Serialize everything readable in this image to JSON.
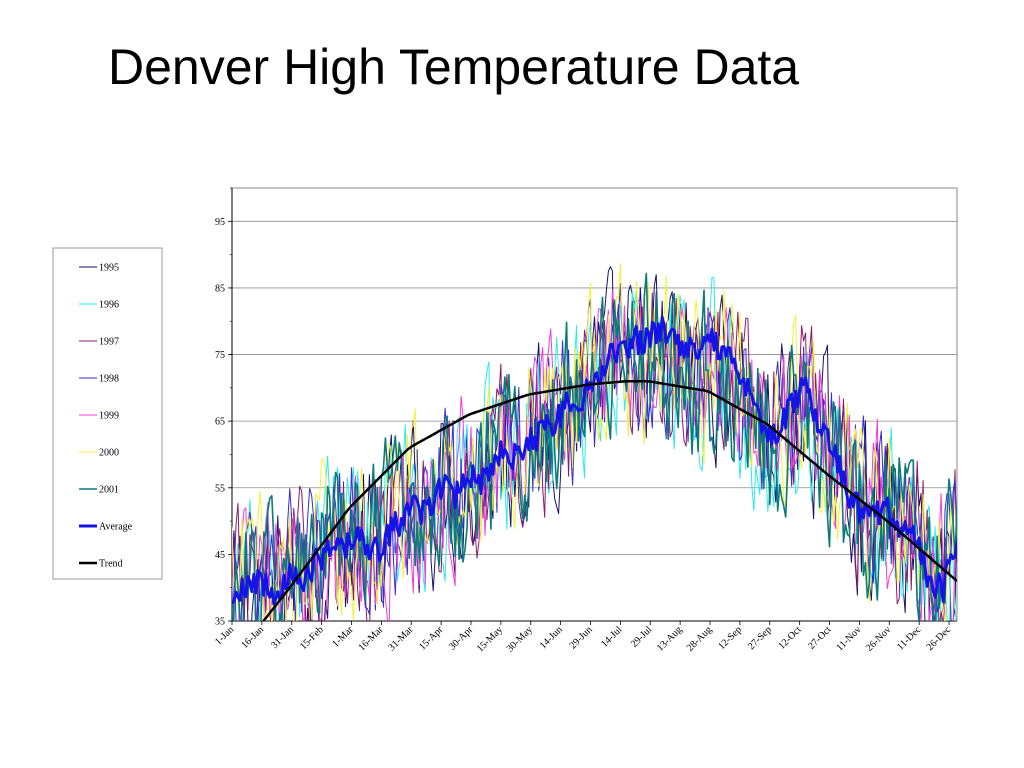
{
  "slide": {
    "title": "Denver High Temperature Data"
  },
  "chart_data": {
    "type": "line",
    "title": "Denver High Temperature Data",
    "xlabel": "",
    "ylabel": "",
    "ylim": [
      35,
      100
    ],
    "yticks": [
      35,
      45,
      55,
      65,
      75,
      85,
      95
    ],
    "x_days": [
      1,
      365
    ],
    "x_tick_labels": [
      "1-Jan",
      "16-Jan",
      "31-Jan",
      "15-Feb",
      "1-Mar",
      "16-Mar",
      "31-Mar",
      "15-Apr",
      "30-Apr",
      "15-May",
      "30-May",
      "14-Jun",
      "29-Jun",
      "14-Jul",
      "29-Jul",
      "13-Aug",
      "28-Aug",
      "12-Sep",
      "27-Sep",
      "12-Oct",
      "27-Oct",
      "11-Nov",
      "26-Nov",
      "11-Dec",
      "26-Dec"
    ],
    "grid": true,
    "legend_position": "left",
    "series_style": {
      "1995": {
        "color": "#1a0f6e",
        "width": 1
      },
      "1996": {
        "color": "#2ee8f0",
        "width": 1
      },
      "1997": {
        "color": "#8a1a6a",
        "width": 1
      },
      "1998": {
        "color": "#3a2ad0",
        "width": 1
      },
      "1999": {
        "color": "#f03ce0",
        "width": 1
      },
      "2000": {
        "color": "#f2f23a",
        "width": 1
      },
      "2001": {
        "color": "#0a7a7a",
        "width": 1.6
      },
      "Average": {
        "color": "#1414e6",
        "width": 3
      },
      "Trend": {
        "color": "#000000",
        "width": 2.5
      }
    },
    "series": [
      {
        "name": "Average",
        "x": [
          1,
          8,
          15,
          22,
          29,
          36,
          43,
          50,
          57,
          64,
          71,
          78,
          85,
          92,
          99,
          106,
          113,
          120,
          127,
          134,
          141,
          148,
          155,
          162,
          169,
          176,
          183,
          190,
          197,
          204,
          211,
          218,
          225,
          232,
          239,
          246,
          253,
          260,
          267,
          274,
          281,
          288,
          295,
          302,
          309,
          316,
          323,
          330,
          337,
          344,
          351,
          358,
          365
        ],
        "values": [
          37,
          40,
          41,
          39,
          42,
          40,
          44,
          46,
          46,
          48,
          45,
          47,
          50,
          52,
          51,
          55,
          54,
          57,
          56,
          60,
          59,
          61,
          63,
          65,
          67,
          68,
          71,
          75,
          76,
          77,
          78,
          79,
          77,
          76,
          77,
          76,
          73,
          70,
          64,
          63,
          67,
          71,
          65,
          62,
          55,
          52,
          51,
          52,
          48,
          48,
          41,
          40,
          47
        ]
      },
      {
        "name": "Trend",
        "x": [
          1,
          30,
          60,
          90,
          120,
          150,
          180,
          199,
          210,
          240,
          270,
          300,
          330,
          365
        ],
        "values": [
          29,
          40,
          52,
          61,
          66,
          69,
          70.5,
          71,
          71,
          69.5,
          64.5,
          57,
          50,
          41
        ]
      },
      {
        "name": "1995",
        "x": [
          1,
          91,
          182,
          273,
          365
        ],
        "values": [
          36,
          52,
          71,
          64,
          42
        ]
      },
      {
        "name": "1996",
        "x": [
          1,
          91,
          182,
          273,
          365
        ],
        "values": [
          38,
          54,
          73,
          62,
          43
        ]
      },
      {
        "name": "1997",
        "x": [
          1,
          91,
          182,
          273,
          365
        ],
        "values": [
          40,
          51,
          72,
          65,
          44
        ]
      },
      {
        "name": "1998",
        "x": [
          1,
          91,
          182,
          273,
          365
        ],
        "values": [
          41,
          53,
          74,
          63,
          45
        ]
      },
      {
        "name": "1999",
        "x": [
          1,
          91,
          182,
          273,
          365
        ],
        "values": [
          39,
          50,
          72,
          66,
          46
        ]
      },
      {
        "name": "2000",
        "x": [
          1,
          91,
          182,
          273,
          365
        ],
        "values": [
          42,
          55,
          75,
          64,
          43
        ]
      },
      {
        "name": "2001",
        "x": [
          1,
          91,
          182,
          273,
          365
        ],
        "values": [
          38,
          52,
          73,
          63,
          44
        ]
      }
    ]
  },
  "legend": {
    "items": [
      {
        "label": "1995",
        "color": "#1a0f6e"
      },
      {
        "label": "1996",
        "color": "#2ee8f0"
      },
      {
        "label": "1997",
        "color": "#8a1a6a"
      },
      {
        "label": "1998",
        "color": "#3a2ad0"
      },
      {
        "label": "1999",
        "color": "#f03ce0"
      },
      {
        "label": "2000",
        "color": "#f2f23a"
      },
      {
        "label": "2001",
        "color": "#0a7a7a"
      },
      {
        "label": "Average",
        "color": "#1414e6"
      },
      {
        "label": "Trend",
        "color": "#000000"
      }
    ]
  }
}
